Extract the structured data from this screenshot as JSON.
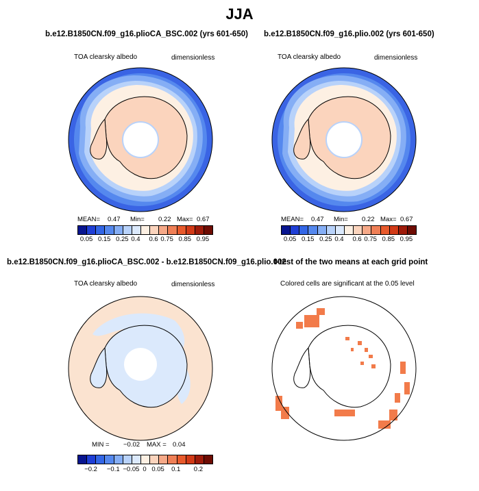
{
  "figure_title": "JJA",
  "colors": {
    "albedo_scale": [
      "#08158f",
      "#1f3fd6",
      "#3366e6",
      "#5588ee",
      "#85aef5",
      "#b8d2fa",
      "#dbe9fc",
      "#fdf0e3",
      "#fbd4bd",
      "#f6a988",
      "#ef7f56",
      "#e85a2c",
      "#d23a17",
      "#9e1b0a",
      "#6e0c03"
    ],
    "diff_scale": [
      "#08158f",
      "#1f3fd6",
      "#3366e6",
      "#5588ee",
      "#85aef5",
      "#b8d2fa",
      "#dbe9fc",
      "#fdf0e3",
      "#fbd4bd",
      "#f6a988",
      "#ef7f56",
      "#e85a2c",
      "#d23a17",
      "#9e1b0a",
      "#6e0c03"
    ],
    "significance": "#f27b4a"
  },
  "panels": {
    "top_left": {
      "title": "b.e12.B1850CN.f09_g16.plioCA_BSC.002 (yrs 601-650)",
      "left_label": "TOA clearsky albedo",
      "right_label": "dimensionless",
      "mean_label": "MEAN=",
      "mean_value": "0.47",
      "min_label": "Min=",
      "min_value": "0.22",
      "max_label": "Max=",
      "max_value": "0.67",
      "colorbar_ticks": [
        "0.05",
        "0.15",
        "0.25",
        "0.4",
        "0.6",
        "0.75",
        "0.85",
        "0.95"
      ]
    },
    "top_right": {
      "title": "b.e12.B1850CN.f09_g16.plio.002 (yrs 601-650)",
      "left_label": "TOA clearsky albedo",
      "right_label": "dimensionless",
      "mean_label": "MEAN=",
      "mean_value": "0.47",
      "min_label": "Min=",
      "min_value": "0.22",
      "max_label": "Max=",
      "max_value": "0.67",
      "colorbar_ticks": [
        "0.05",
        "0.15",
        "0.25",
        "0.4",
        "0.6",
        "0.75",
        "0.85",
        "0.95"
      ]
    },
    "bottom_left": {
      "title": "b.e12.B1850CN.f09_g16.plioCA_BSC.002 - b.e12.B1850CN.f09_g16.plio.002",
      "left_label": "TOA clearsky albedo",
      "right_label": "dimensionless",
      "min_label": "MIN =",
      "min_value": "−0.02",
      "max_label": "MAX =",
      "max_value": "0.04",
      "colorbar_ticks": [
        "−0.2",
        "−0.1",
        "−0.05",
        "0",
        "0.05",
        "0.1",
        "0.2"
      ]
    },
    "bottom_right": {
      "title": "t-test of the two means at each grid point",
      "subtitle": "Colored cells are significant at the 0.05 level"
    }
  }
}
